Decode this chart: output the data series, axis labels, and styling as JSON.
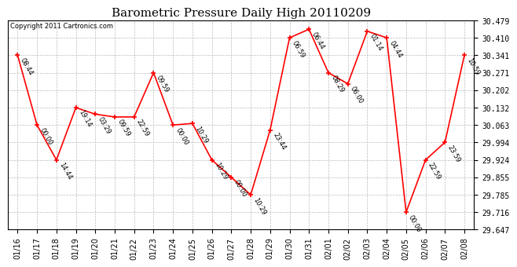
{
  "title": "Barometric Pressure Daily High 20110209",
  "copyright": "Copyright 2011 Cartronics.com",
  "background_color": "#ffffff",
  "line_color": "#ff0000",
  "marker_color": "#ff0000",
  "grid_color": "#bbbbbb",
  "dates": [
    "01/16",
    "01/17",
    "01/18",
    "01/19",
    "01/20",
    "01/21",
    "01/22",
    "01/23",
    "01/24",
    "01/25",
    "01/26",
    "01/27",
    "01/28",
    "01/29",
    "01/30",
    "01/31",
    "02/01",
    "02/02",
    "02/03",
    "02/04",
    "02/05",
    "02/06",
    "02/07",
    "02/08"
  ],
  "values": [
    30.341,
    30.063,
    29.924,
    30.132,
    30.106,
    30.095,
    30.095,
    30.271,
    30.063,
    30.069,
    29.924,
    29.855,
    29.785,
    30.043,
    30.41,
    30.444,
    30.271,
    30.227,
    30.436,
    30.41,
    29.716,
    29.924,
    29.994,
    30.341
  ],
  "annotations": [
    "08:44",
    "00:00",
    "14:44",
    "19:14",
    "03:29",
    "09:59",
    "22:59",
    "09:59",
    "00:00",
    "10:29",
    "10:29",
    "00:00",
    "10:29",
    "23:44",
    "06:59",
    "06:44",
    "08:29",
    "06:00",
    "01:14",
    "04:44",
    "00:00",
    "22:59",
    "23:59",
    "10:59"
  ],
  "ylim_min": 29.647,
  "ylim_max": 30.479,
  "ytick_values": [
    29.647,
    29.716,
    29.785,
    29.855,
    29.924,
    29.994,
    30.063,
    30.132,
    30.202,
    30.271,
    30.341,
    30.41,
    30.479
  ],
  "title_fontsize": 11,
  "annotation_fontsize": 6,
  "axis_fontsize": 7,
  "copyright_fontsize": 6,
  "marker_size": 5,
  "line_width": 1.2
}
